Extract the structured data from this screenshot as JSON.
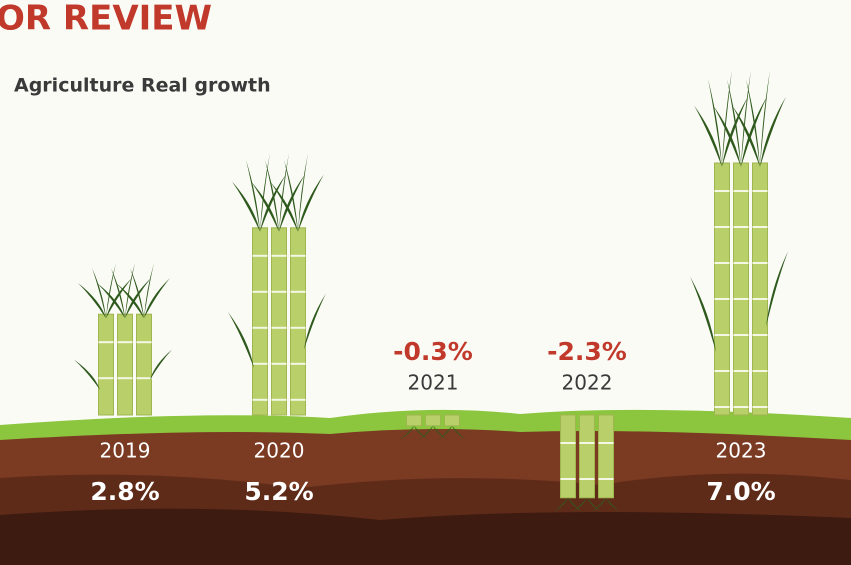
{
  "chart_data": {
    "type": "bar",
    "title": "OR REVIEW",
    "subtitle": "Agriculture Real growth",
    "categories": [
      "2019",
      "2020",
      "2021",
      "2022",
      "2023"
    ],
    "values": [
      2.8,
      5.2,
      -0.3,
      -2.3,
      7.0
    ],
    "value_labels": [
      "2.8%",
      "5.2%",
      "-0.3%",
      "-2.3%",
      "7.0%"
    ],
    "color": "#b8cf6a"
  }
}
